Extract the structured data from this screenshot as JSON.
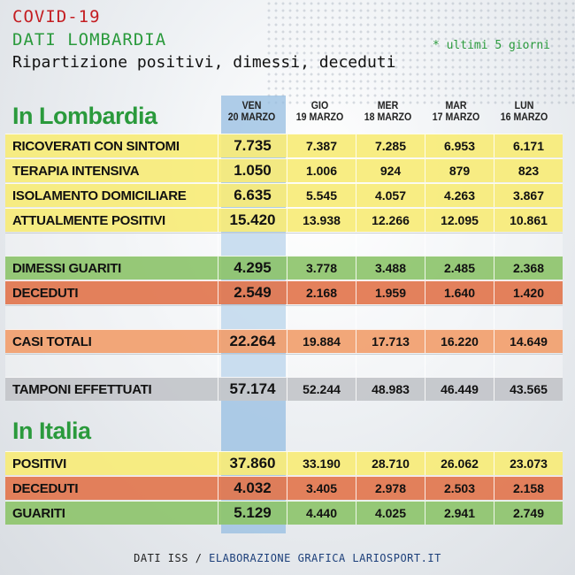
{
  "header": {
    "covid": "COVID-19",
    "region": "DATI LOMBARDIA",
    "subtitle": "Ripartizione positivi, dimessi, deceduti",
    "note": "* ultimi 5 giorni"
  },
  "columns": [
    {
      "day": "VEN",
      "date": "20 MARZO"
    },
    {
      "day": "GIO",
      "date": "19 MARZO"
    },
    {
      "day": "MER",
      "date": "18 MARZO"
    },
    {
      "day": "MAR",
      "date": "17 MARZO"
    },
    {
      "day": "LUN",
      "date": "16 MARZO"
    }
  ],
  "lombardia": {
    "title": "In Lombardia",
    "rows": [
      {
        "label": "RICOVERATI CON SINTOMI",
        "color": "yellow",
        "values": [
          "7.735",
          "7.387",
          "7.285",
          "6.953",
          "6.171"
        ]
      },
      {
        "label": "TERAPIA INTENSIVA",
        "color": "yellow",
        "values": [
          "1.050",
          "1.006",
          "924",
          "879",
          "823"
        ]
      },
      {
        "label": "ISOLAMENTO DOMICILIARE",
        "color": "yellow",
        "values": [
          "6.635",
          "5.545",
          "4.057",
          "4.263",
          "3.867"
        ]
      },
      {
        "label": "ATTUALMENTE POSITIVI",
        "color": "yellow",
        "values": [
          "15.420",
          "13.938",
          "12.266",
          "12.095",
          "10.861"
        ]
      },
      {
        "label": "DIMESSI GUARITI",
        "color": "green",
        "values": [
          "4.295",
          "3.778",
          "3.488",
          "2.485",
          "2.368"
        ]
      },
      {
        "label": "DECEDUTI",
        "color": "red",
        "values": [
          "2.549",
          "2.168",
          "1.959",
          "1.640",
          "1.420"
        ]
      },
      {
        "label": "CASI TOTALI",
        "color": "orange",
        "values": [
          "22.264",
          "19.884",
          "17.713",
          "16.220",
          "14.649"
        ]
      },
      {
        "label": "TAMPONI EFFETTUATI",
        "color": "grey",
        "values": [
          "57.174",
          "52.244",
          "48.983",
          "46.449",
          "43.565"
        ]
      }
    ]
  },
  "italia": {
    "title": "In Italia",
    "rows": [
      {
        "label": "POSITIVI",
        "color": "yellow",
        "values": [
          "37.860",
          "33.190",
          "28.710",
          "26.062",
          "23.073"
        ]
      },
      {
        "label": "DECEDUTI",
        "color": "red",
        "values": [
          "4.032",
          "3.405",
          "2.978",
          "2.503",
          "2.158"
        ]
      },
      {
        "label": "GUARITI",
        "color": "green",
        "values": [
          "5.129",
          "4.440",
          "4.025",
          "2.941",
          "2.749"
        ]
      }
    ]
  },
  "footer": {
    "source": "DATI ISS",
    "separator": "/",
    "credit": "ELABORAZIONE GRAFICA LARIOSPORT.IT"
  }
}
